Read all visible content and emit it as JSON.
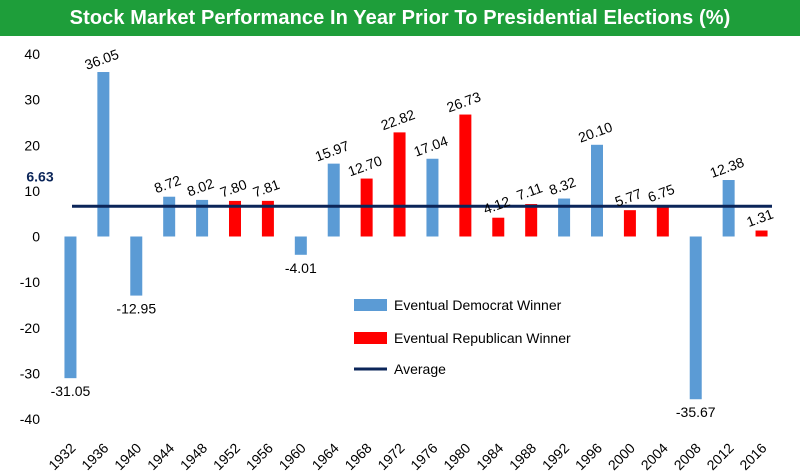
{
  "title": "Stock Market Performance In Year Prior To Presidential Elections (%)",
  "colors": {
    "title_bg": "#1e9e3a",
    "democrat": "#5b9bd5",
    "republican": "#ff0000",
    "average": "#0b2559"
  },
  "chart_data": {
    "type": "bar",
    "title": "Stock Market Performance In Year Prior To Presidential Elections (%)",
    "categories": [
      "1932",
      "1936",
      "1940",
      "1944",
      "1948",
      "1952",
      "1956",
      "1960",
      "1964",
      "1968",
      "1972",
      "1976",
      "1980",
      "1984",
      "1988",
      "1992",
      "1996",
      "2000",
      "2004",
      "2008",
      "2012",
      "2016"
    ],
    "values": [
      -31.05,
      36.05,
      -12.95,
      8.72,
      8.02,
      7.8,
      7.81,
      -4.01,
      15.97,
      12.7,
      22.82,
      17.04,
      26.73,
      4.12,
      7.11,
      8.32,
      20.1,
      5.77,
      6.75,
      -35.67,
      12.38,
      1.31
    ],
    "value_labels": [
      "-31.05",
      "36.05",
      "-12.95",
      "8.72",
      "8.02",
      "7.80",
      "7.81",
      "-4.01",
      "15.97",
      "12.70",
      "22.82",
      "17.04",
      "26.73",
      "4.12",
      "7.11",
      "8.32",
      "20.10",
      "5.77",
      "6.75",
      "-35.67",
      "12.38",
      "1.31"
    ],
    "winner_party": [
      "D",
      "D",
      "D",
      "D",
      "D",
      "R",
      "R",
      "D",
      "D",
      "R",
      "R",
      "D",
      "R",
      "R",
      "R",
      "D",
      "D",
      "R",
      "R",
      "D",
      "D",
      "R"
    ],
    "series": [
      {
        "name": "Eventual Democrat Winner",
        "party": "D"
      },
      {
        "name": "Eventual Republican Winner",
        "party": "R"
      }
    ],
    "average": {
      "name": "Average",
      "value": 6.63,
      "label": "6.63"
    },
    "ylim": [
      -40,
      40
    ],
    "yticks": [
      -40,
      -30,
      -20,
      -10,
      0,
      10,
      20,
      30,
      40
    ],
    "xlabel": "",
    "ylabel": "",
    "grid": false,
    "legend_position": "center"
  }
}
